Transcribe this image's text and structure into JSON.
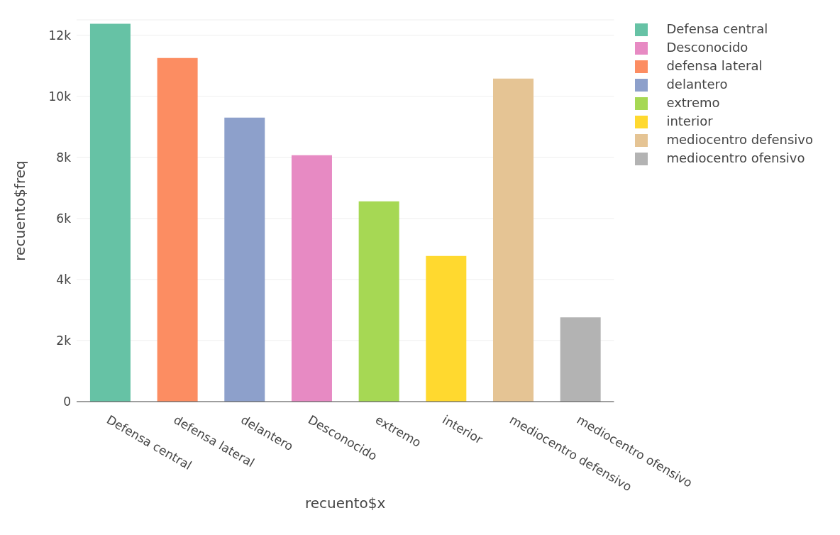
{
  "chart_data": {
    "type": "bar",
    "xlabel": "recuento$x",
    "ylabel": "recuento$freq",
    "categories": [
      "Defensa central",
      "defensa lateral",
      "delantero",
      "Desconocido",
      "extremo",
      "interior",
      "mediocentro defensivo",
      "mediocentro ofensivo"
    ],
    "series": [
      {
        "name": "Defensa central",
        "color": "#66c2a5",
        "values": [
          12370,
          null,
          null,
          null,
          null,
          null,
          null,
          null
        ]
      },
      {
        "name": "Desconocido",
        "color": "#e78ac3",
        "values": [
          null,
          null,
          null,
          8070,
          null,
          null,
          null,
          null
        ]
      },
      {
        "name": "defensa lateral",
        "color": "#fc8d62",
        "values": [
          null,
          11250,
          null,
          null,
          null,
          null,
          null,
          null
        ]
      },
      {
        "name": "delantero",
        "color": "#8da0cb",
        "values": [
          null,
          null,
          9300,
          null,
          null,
          null,
          null,
          null
        ]
      },
      {
        "name": "extremo",
        "color": "#a6d854",
        "values": [
          null,
          null,
          null,
          null,
          6560,
          null,
          null,
          null
        ]
      },
      {
        "name": "interior",
        "color": "#ffd92f",
        "values": [
          null,
          null,
          null,
          null,
          null,
          4770,
          null,
          null
        ]
      },
      {
        "name": "mediocentro defensivo",
        "color": "#e5c494",
        "values": [
          null,
          null,
          null,
          null,
          null,
          null,
          10580,
          null
        ]
      },
      {
        "name": "mediocentro ofensivo",
        "color": "#b3b3b3",
        "values": [
          null,
          null,
          null,
          null,
          null,
          null,
          null,
          2760
        ]
      }
    ],
    "ylim": [
      0,
      12500
    ],
    "yticks": [
      0,
      {
        "value": 2000,
        "label": "2k"
      },
      {
        "value": 4000,
        "label": "4k"
      },
      {
        "value": 6000,
        "label": "6k"
      },
      {
        "value": 8000,
        "label": "8k"
      },
      {
        "value": 10000,
        "label": "10k"
      },
      {
        "value": 12000,
        "label": "12k"
      }
    ],
    "grid": "y",
    "legend": "top right"
  }
}
